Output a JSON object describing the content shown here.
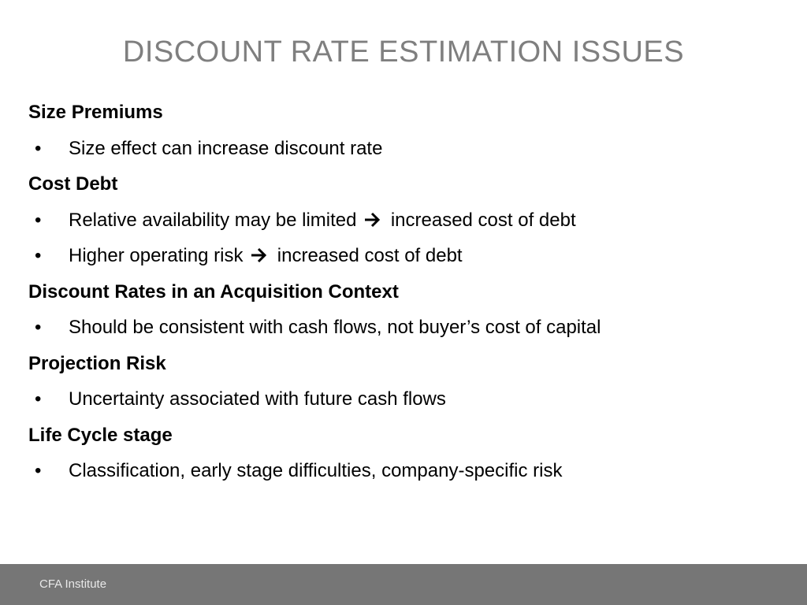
{
  "slide": {
    "title": "DISCOUNT RATE ESTIMATION ISSUES",
    "sections": [
      {
        "heading": "Size Premiums",
        "bullets": [
          {
            "text": "Size effect can increase discount rate"
          }
        ]
      },
      {
        "heading": "Cost Debt",
        "bullets": [
          {
            "before": "Relative availability may be limited",
            "after": "increased cost of debt"
          },
          {
            "before": "Higher operating risk",
            "after": "increased cost of debt"
          }
        ]
      },
      {
        "heading": "Discount Rates in an Acquisition Context",
        "bullets": [
          {
            "text": "Should be consistent with cash flows, not buyer’s cost of capital"
          }
        ]
      },
      {
        "heading": "Projection Risk",
        "bullets": [
          {
            "text": "Uncertainty associated with future cash flows"
          }
        ]
      },
      {
        "heading": "Life Cycle stage",
        "bullets": [
          {
            "text": "Classification, early stage difficulties, company-specific risk"
          }
        ]
      }
    ],
    "bullet_glyph": "•",
    "arrow_icon": "right-arrow-icon"
  },
  "footer": {
    "text": "CFA Institute",
    "background": "#767676"
  },
  "colors": {
    "title": "#7f7f7f",
    "body_text": "#000000"
  }
}
